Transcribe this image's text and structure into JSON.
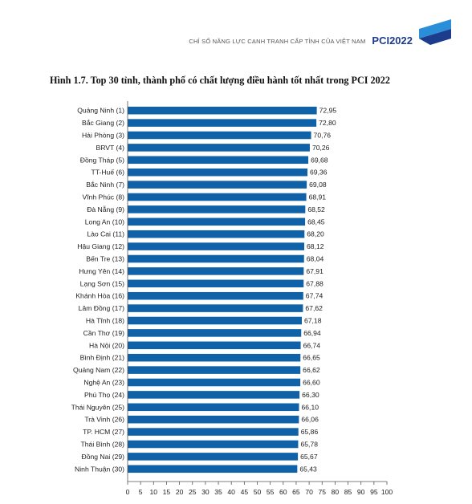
{
  "header": {
    "subtitle": "CHỈ SỐ NĂNG LỰC CẠNH TRANH CẤP TỈNH CỦA VIỆT NAM",
    "brand": "PCI2022"
  },
  "colors": {
    "bar": "#0f62a8",
    "brand": "#1d3c8c",
    "accent": "#2a8fd8"
  },
  "chart_data": {
    "type": "bar",
    "orientation": "horizontal",
    "title": "Hình 1.7. Top 30 tỉnh, thành phố có chất lượng điều hành tốt nhất trong PCI 2022",
    "categories": [
      "Quảng Ninh (1)",
      "Bắc Giang (2)",
      "Hải Phòng (3)",
      "BRVT (4)",
      "Đồng Tháp (5)",
      "TT-Huế (6)",
      "Bắc Ninh (7)",
      "Vĩnh Phúc (8)",
      "Đà Nẵng (9)",
      "Long An (10)",
      "Lào Cai (11)",
      "Hậu Giang (12)",
      "Bến Tre (13)",
      "Hưng Yên (14)",
      "Lạng Sơn (15)",
      "Khánh Hòa (16)",
      "Lâm Đồng (17)",
      "Hà Tĩnh (18)",
      "Cần Thơ (19)",
      "Hà Nội (20)",
      "Bình Định (21)",
      "Quảng Nam (22)",
      "Nghệ An (23)",
      "Phú Thọ (24)",
      "Thái Nguyên (25)",
      "Trà Vinh (26)",
      "TP. HCM (27)",
      "Thái Bình (28)",
      "Đồng Nai (29)",
      "Ninh Thuận (30)"
    ],
    "values": [
      72.95,
      72.8,
      70.76,
      70.26,
      69.68,
      69.36,
      69.08,
      68.91,
      68.52,
      68.45,
      68.2,
      68.12,
      68.04,
      67.91,
      67.88,
      67.74,
      67.62,
      67.18,
      66.94,
      66.74,
      66.65,
      66.62,
      66.6,
      66.3,
      66.1,
      66.06,
      65.86,
      65.78,
      65.67,
      65.43
    ],
    "value_labels": [
      "72,95",
      "72,80",
      "70,76",
      "70,26",
      "69,68",
      "69,36",
      "69,08",
      "68,91",
      "68,52",
      "68,45",
      "68,20",
      "68,12",
      "68,04",
      "67,91",
      "67,88",
      "67,74",
      "67,62",
      "67,18",
      "66,94",
      "66,74",
      "66,65",
      "66,62",
      "66,60",
      "66,30",
      "66,10",
      "66,06",
      "65,86",
      "65,78",
      "65,67",
      "65,43"
    ],
    "xlim": [
      0,
      100
    ],
    "xticks": [
      0,
      5,
      10,
      15,
      20,
      25,
      30,
      35,
      40,
      45,
      50,
      55,
      60,
      65,
      70,
      75,
      80,
      85,
      90,
      95,
      100
    ],
    "grid": false,
    "legend": false
  }
}
